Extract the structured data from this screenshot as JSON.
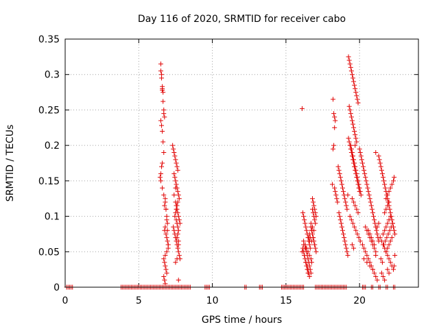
{
  "chart_data": {
    "type": "scatter",
    "title": "Day 116 of 2020, SRMTID for receiver cabo",
    "xlabel": "GPS time / hours",
    "ylabel": "SRMTID / TECUs",
    "xlim": [
      0,
      24
    ],
    "ylim": [
      0,
      0.35
    ],
    "xticks": [
      0,
      5,
      10,
      15,
      20
    ],
    "yticks": [
      0,
      0.05,
      0.1,
      0.15,
      0.2,
      0.25,
      0.3,
      0.35
    ],
    "xtick_labels": [
      "0",
      "5",
      "10",
      "15",
      "20"
    ],
    "ytick_labels": [
      "0",
      "0.05",
      "0.1",
      "0.15",
      "0.2",
      "0.25",
      "0.3",
      "0.35"
    ],
    "grid": true,
    "marker": "+",
    "marker_color": "#e00000",
    "series": [
      {
        "name": "SRMTID",
        "x": [
          0.1,
          0.2,
          0.3,
          0.4,
          0.5,
          3.8,
          3.9,
          4.0,
          4.1,
          4.2,
          4.3,
          4.4,
          4.5,
          4.6,
          4.7,
          4.8,
          4.9,
          5.0,
          5.1,
          5.2,
          5.3,
          5.4,
          5.5,
          5.6,
          5.7,
          5.8,
          5.9,
          6.0,
          6.1,
          6.2,
          6.3,
          6.4,
          6.5,
          6.6,
          6.7,
          6.8,
          6.9,
          7.0,
          7.1,
          7.2,
          7.3,
          7.4,
          7.5,
          7.6,
          7.7,
          7.8,
          7.9,
          8.0,
          8.1,
          8.2,
          8.3,
          8.4,
          8.5,
          9.5,
          9.6,
          9.7,
          9.8,
          12.2,
          12.3,
          13.2,
          13.3,
          13.4,
          14.7,
          14.8,
          14.9,
          15.0,
          15.1,
          15.2,
          15.3,
          15.4,
          15.5,
          15.6,
          15.7,
          15.8,
          15.9,
          16.0,
          16.1,
          16.2,
          17.0,
          17.1,
          17.2,
          17.3,
          17.4,
          17.5,
          17.6,
          17.7,
          17.8,
          17.9,
          18.0,
          18.1,
          18.2,
          18.3,
          18.4,
          18.5,
          18.6,
          18.7,
          18.8,
          18.9,
          19.0,
          19.1,
          20.2,
          20.3,
          20.4,
          20.8,
          20.9,
          21.3,
          21.4,
          21.8,
          21.9,
          22.3,
          22.4,
          6.5,
          6.5,
          6.55,
          6.55,
          6.6,
          6.6,
          6.6,
          6.65,
          6.65,
          6.7,
          6.7,
          6.75,
          6.5,
          6.55,
          6.6,
          6.65,
          6.7,
          6.6,
          6.55,
          6.5,
          6.45,
          6.5,
          6.6,
          6.7,
          6.8,
          6.85,
          6.9,
          6.95,
          6.8,
          6.75,
          6.85,
          6.9,
          6.95,
          7.0,
          7.0,
          6.9,
          6.8,
          6.7,
          6.75,
          6.8,
          6.85,
          6.9,
          6.7,
          6.75,
          6.8,
          6.85,
          6.9,
          6.95,
          7.0,
          6.8,
          6.75,
          7.3,
          7.35,
          7.4,
          7.45,
          7.5,
          7.55,
          7.6,
          7.65,
          7.4,
          7.45,
          7.5,
          7.55,
          7.6,
          7.65,
          7.7,
          7.75,
          7.5,
          7.55,
          7.6,
          7.65,
          7.7,
          7.75,
          7.8,
          7.35,
          7.4,
          7.45,
          7.5,
          7.55,
          7.6,
          7.65,
          7.7,
          7.75,
          7.8,
          7.45,
          7.5,
          7.55,
          7.6,
          7.65,
          7.7,
          7.55,
          7.6,
          7.65,
          7.7,
          7.6,
          7.65,
          7.7,
          7.5,
          7.6,
          7.7,
          7.4,
          7.5,
          16.1,
          16.15,
          16.2,
          16.25,
          16.3,
          16.35,
          16.4,
          16.45,
          16.5,
          16.55,
          16.6,
          16.65,
          16.2,
          16.25,
          16.3,
          16.35,
          16.4,
          16.45,
          16.5,
          16.55,
          16.6,
          16.3,
          16.35,
          16.4,
          16.45,
          16.5,
          16.55,
          16.6,
          16.65,
          16.7,
          16.2,
          16.3,
          16.4,
          16.5,
          16.6,
          16.7,
          16.75,
          16.8,
          16.85,
          16.9,
          16.95,
          17.0,
          16.7,
          16.75,
          16.8,
          16.85,
          16.9,
          16.95,
          17.0,
          17.05,
          16.8,
          16.85,
          16.9,
          16.95,
          17.0,
          17.05,
          16.75,
          16.85,
          16.95,
          16.3,
          16.25,
          16.35,
          16.45,
          16.5,
          16.55,
          16.6,
          16.7,
          16.8,
          16.9,
          16.6,
          16.65,
          16.75,
          16.2,
          16.15,
          16.1,
          18.2,
          18.25,
          18.3,
          18.35,
          18.3,
          18.25,
          18.2,
          18.15,
          18.3,
          18.35,
          18.4,
          18.45,
          18.5,
          18.55,
          18.6,
          18.65,
          18.7,
          18.75,
          18.8,
          18.85,
          18.9,
          18.95,
          19.0,
          19.05,
          19.1,
          19.15,
          18.6,
          18.65,
          18.7,
          18.75,
          18.8,
          18.85,
          18.9,
          18.95,
          19.0,
          19.05,
          19.1,
          19.15,
          19.2,
          19.25,
          19.3,
          19.35,
          19.4,
          19.45,
          19.5,
          19.55,
          19.6,
          19.65,
          19.7,
          19.75,
          19.8,
          19.85,
          19.9,
          19.95,
          20.0,
          19.2,
          19.25,
          19.3,
          19.35,
          19.4,
          19.45,
          19.5,
          19.55,
          19.6,
          19.65,
          19.7,
          19.75,
          19.8,
          19.85,
          19.9,
          19.3,
          19.35,
          19.4,
          19.45,
          19.5,
          19.55,
          19.6,
          19.65,
          19.7,
          19.75,
          19.8,
          19.4,
          19.45,
          19.5,
          19.55,
          19.6,
          19.65,
          19.7,
          19.75,
          19.8,
          19.85,
          19.9,
          19.95,
          20.0,
          20.05,
          20.1,
          19.5,
          19.6,
          19.7,
          19.8,
          19.9,
          19.35,
          19.45,
          19.55,
          19.65,
          19.75,
          19.85,
          19.95,
          20.05,
          19.5,
          19.6,
          19.7,
          20.0,
          20.05,
          20.1,
          20.15,
          20.2,
          20.25,
          20.3,
          20.35,
          20.4,
          20.45,
          20.5,
          20.55,
          20.6,
          20.65,
          20.7,
          20.75,
          20.8,
          20.85,
          20.9,
          20.95,
          21.0,
          21.05,
          21.1,
          21.15,
          21.2,
          21.25,
          21.3,
          20.2,
          20.3,
          20.4,
          20.5,
          20.6,
          20.7,
          20.8,
          20.9,
          21.0,
          21.1,
          21.2,
          21.3,
          20.4,
          20.5,
          20.6,
          20.7,
          20.8,
          20.9,
          21.0,
          21.1,
          21.2,
          20.6,
          20.7,
          20.8,
          20.9,
          21.0,
          21.1,
          20.3,
          20.5,
          20.7,
          20.9,
          21.1,
          21.3,
          21.35,
          21.4,
          21.45,
          21.5,
          21.55,
          21.6,
          21.65,
          21.7,
          21.75,
          21.8,
          21.85,
          21.9,
          21.95,
          22.0,
          22.05,
          22.1,
          22.15,
          22.2,
          22.25,
          22.3,
          22.35,
          22.4,
          21.4,
          21.5,
          21.6,
          21.7,
          21.8,
          21.9,
          22.0,
          22.1,
          22.2,
          22.3,
          21.5,
          21.6,
          21.7,
          21.8,
          21.9,
          22.0,
          22.1,
          22.2,
          21.6,
          21.7,
          21.8,
          21.9,
          22.0,
          22.1,
          21.7,
          21.8,
          21.9,
          22.0,
          21.8,
          21.9,
          22.0,
          22.1,
          22.2,
          22.3,
          22.35,
          22.4,
          21.45,
          21.55,
          21.65,
          21.75,
          21.85,
          21.95,
          22.05,
          22.15,
          22.25,
          22.35,
          21.9,
          22.0
        ],
        "y": [
          0,
          0,
          0,
          0,
          0,
          0,
          0,
          0,
          0,
          0,
          0,
          0,
          0,
          0,
          0,
          0,
          0,
          0,
          0,
          0,
          0,
          0,
          0,
          0,
          0,
          0,
          0,
          0,
          0,
          0,
          0,
          0,
          0,
          0,
          0,
          0,
          0,
          0,
          0,
          0,
          0,
          0,
          0,
          0,
          0,
          0,
          0,
          0,
          0,
          0,
          0,
          0,
          0,
          0,
          0,
          0,
          0,
          0,
          0,
          0,
          0,
          0,
          0,
          0,
          0,
          0,
          0,
          0,
          0,
          0,
          0,
          0,
          0,
          0,
          0,
          0,
          0,
          0,
          0,
          0,
          0,
          0,
          0,
          0,
          0,
          0,
          0,
          0,
          0,
          0,
          0,
          0,
          0,
          0,
          0,
          0,
          0,
          0,
          0,
          0,
          0,
          0,
          0,
          0,
          0,
          0,
          0,
          0,
          0,
          0,
          0,
          0.315,
          0.305,
          0.3,
          0.295,
          0.283,
          0.28,
          0.278,
          0.275,
          0.262,
          0.25,
          0.245,
          0.24,
          0.235,
          0.228,
          0.22,
          0.205,
          0.19,
          0.175,
          0.17,
          0.16,
          0.155,
          0.15,
          0.14,
          0.13,
          0.12,
          0.11,
          0.1,
          0.09,
          0.085,
          0.08,
          0.075,
          0.07,
          0.065,
          0.06,
          0.055,
          0.05,
          0.045,
          0.04,
          0.035,
          0.03,
          0.025,
          0.02,
          0.015,
          0.01,
          0.005,
          0.11,
          0.095,
          0.08,
          0.06,
          0.125,
          0.115,
          0.2,
          0.195,
          0.19,
          0.185,
          0.18,
          0.175,
          0.17,
          0.165,
          0.16,
          0.155,
          0.15,
          0.145,
          0.14,
          0.135,
          0.13,
          0.125,
          0.12,
          0.115,
          0.11,
          0.105,
          0.1,
          0.095,
          0.09,
          0.085,
          0.08,
          0.075,
          0.07,
          0.065,
          0.06,
          0.055,
          0.05,
          0.045,
          0.04,
          0.1,
          0.105,
          0.095,
          0.09,
          0.085,
          0.08,
          0.11,
          0.115,
          0.12,
          0.06,
          0.07,
          0.075,
          0.065,
          0.035,
          0.04,
          0.01,
          0.13,
          0.14,
          0.252,
          0.105,
          0.1,
          0.095,
          0.09,
          0.085,
          0.08,
          0.075,
          0.07,
          0.065,
          0.06,
          0.055,
          0.05,
          0.045,
          0.04,
          0.035,
          0.03,
          0.025,
          0.02,
          0.07,
          0.065,
          0.06,
          0.055,
          0.05,
          0.045,
          0.04,
          0.035,
          0.03,
          0.025,
          0.02,
          0.065,
          0.06,
          0.055,
          0.05,
          0.045,
          0.04,
          0.035,
          0.11,
          0.105,
          0.1,
          0.095,
          0.09,
          0.085,
          0.08,
          0.075,
          0.07,
          0.065,
          0.06,
          0.055,
          0.05,
          0.125,
          0.12,
          0.115,
          0.11,
          0.105,
          0.1,
          0.08,
          0.07,
          0.06,
          0.055,
          0.045,
          0.035,
          0.03,
          0.025,
          0.02,
          0.015,
          0.09,
          0.085,
          0.08,
          0.075,
          0.07,
          0.065,
          0.06,
          0.055,
          0.05,
          0.265,
          0.245,
          0.24,
          0.235,
          0.225,
          0.2,
          0.195,
          0.145,
          0.14,
          0.135,
          0.13,
          0.125,
          0.12,
          0.17,
          0.165,
          0.16,
          0.155,
          0.15,
          0.145,
          0.14,
          0.135,
          0.13,
          0.125,
          0.12,
          0.115,
          0.11,
          0.105,
          0.1,
          0.095,
          0.09,
          0.085,
          0.08,
          0.075,
          0.07,
          0.065,
          0.06,
          0.055,
          0.05,
          0.045,
          0.21,
          0.205,
          0.2,
          0.195,
          0.19,
          0.185,
          0.18,
          0.175,
          0.17,
          0.165,
          0.16,
          0.155,
          0.15,
          0.145,
          0.14,
          0.135,
          0.13,
          0.325,
          0.32,
          0.315,
          0.31,
          0.305,
          0.3,
          0.295,
          0.29,
          0.285,
          0.28,
          0.275,
          0.27,
          0.265,
          0.26,
          0.255,
          0.25,
          0.245,
          0.24,
          0.235,
          0.23,
          0.225,
          0.22,
          0.215,
          0.21,
          0.205,
          0.2,
          0.195,
          0.19,
          0.185,
          0.18,
          0.175,
          0.17,
          0.165,
          0.16,
          0.155,
          0.15,
          0.145,
          0.14,
          0.135,
          0.13,
          0.125,
          0.12,
          0.115,
          0.11,
          0.105,
          0.1,
          0.095,
          0.09,
          0.085,
          0.08,
          0.075,
          0.07,
          0.065,
          0.06,
          0.055,
          0.2,
          0.195,
          0.19,
          0.185,
          0.18,
          0.175,
          0.17,
          0.165,
          0.16,
          0.155,
          0.15,
          0.145,
          0.14,
          0.135,
          0.13,
          0.125,
          0.12,
          0.115,
          0.11,
          0.105,
          0.1,
          0.095,
          0.09,
          0.085,
          0.08,
          0.075,
          0.07,
          0.065,
          0.06,
          0.055,
          0.05,
          0.045,
          0.04,
          0.035,
          0.03,
          0.025,
          0.02,
          0.015,
          0.01,
          0.09,
          0.085,
          0.08,
          0.075,
          0.07,
          0.065,
          0.06,
          0.055,
          0.05,
          0.085,
          0.08,
          0.075,
          0.07,
          0.065,
          0.06,
          0.045,
          0.04,
          0.035,
          0.03,
          0.025,
          0.19,
          0.185,
          0.18,
          0.175,
          0.17,
          0.165,
          0.16,
          0.155,
          0.15,
          0.145,
          0.14,
          0.135,
          0.13,
          0.125,
          0.12,
          0.115,
          0.11,
          0.105,
          0.1,
          0.095,
          0.09,
          0.085,
          0.08,
          0.075,
          0.07,
          0.065,
          0.06,
          0.055,
          0.05,
          0.045,
          0.04,
          0.035,
          0.03,
          0.025,
          0.02,
          0.015,
          0.01,
          0.05,
          0.055,
          0.06,
          0.065,
          0.07,
          0.075,
          0.08,
          0.085,
          0.09,
          0.095,
          0.1,
          0.105,
          0.11,
          0.115,
          0.12,
          0.125,
          0.13,
          0.135,
          0.14,
          0.145,
          0.15,
          0.155,
          0.045,
          0.04,
          0.035,
          0.06,
          0.065,
          0.07,
          0.075,
          0.08,
          0.085,
          0.09,
          0.03,
          0.025,
          0.02
        ]
      }
    ]
  }
}
